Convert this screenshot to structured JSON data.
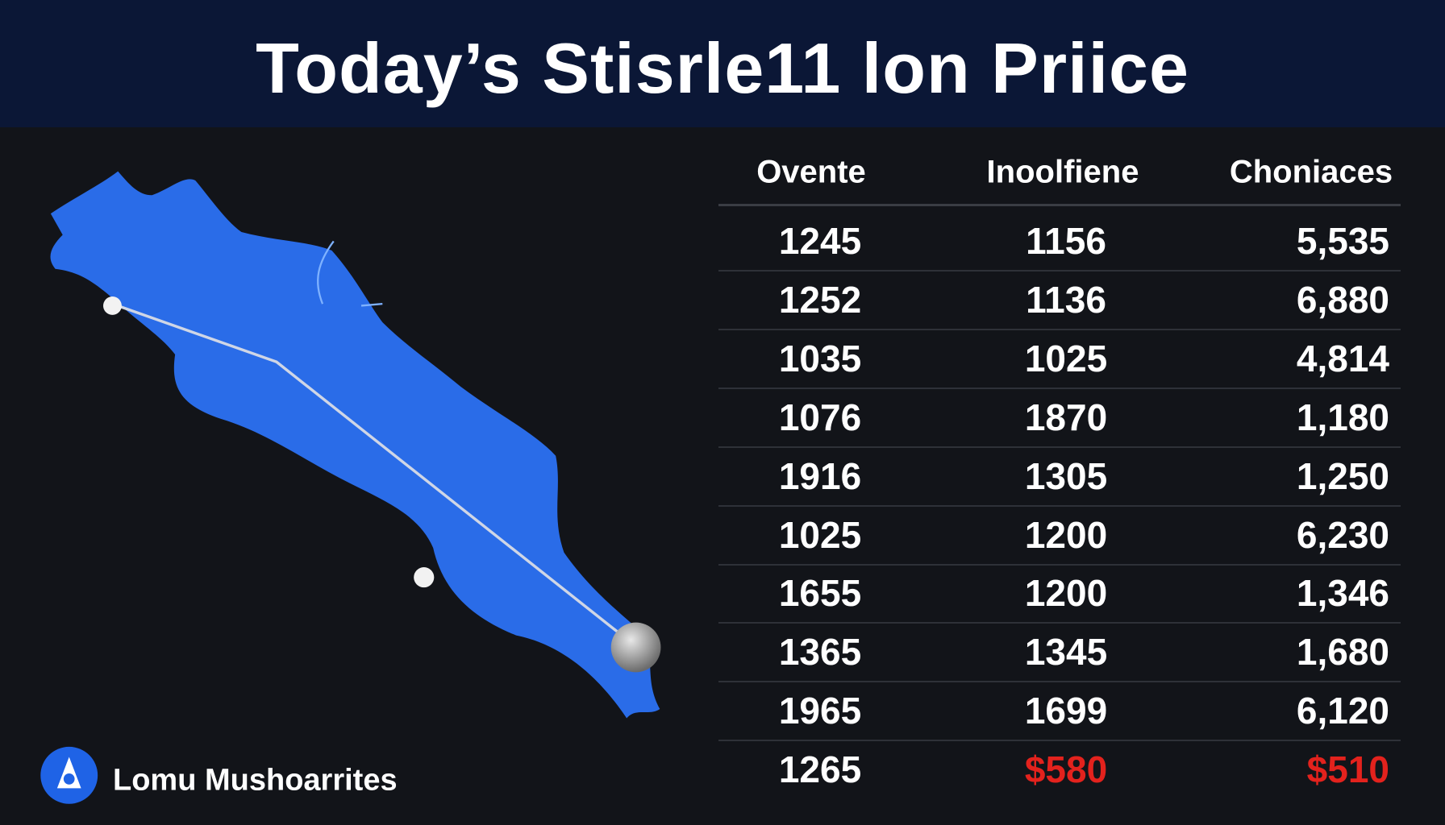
{
  "header": {
    "title": "Today’s Stisrle11 lon Priice"
  },
  "table": {
    "columns": [
      "Ovente",
      "Inoolfiene",
      "Choniaces"
    ],
    "rows": [
      [
        "1245",
        "1156",
        "5,535"
      ],
      [
        "1252",
        "1136",
        "6,880"
      ],
      [
        "1035",
        "1025",
        "4,814"
      ],
      [
        "1076",
        "1870",
        "1,180"
      ],
      [
        "1916",
        "1305",
        "1,250"
      ],
      [
        "1025",
        "1200",
        "6,230"
      ],
      [
        "1655",
        "1200",
        "1,346"
      ],
      [
        "1365",
        "1345",
        "1,680"
      ],
      [
        "1965",
        "1699",
        "6,120"
      ],
      [
        "1265",
        "$580",
        "$510"
      ]
    ]
  },
  "brand": {
    "label": "Lomu Mushoarrites"
  }
}
